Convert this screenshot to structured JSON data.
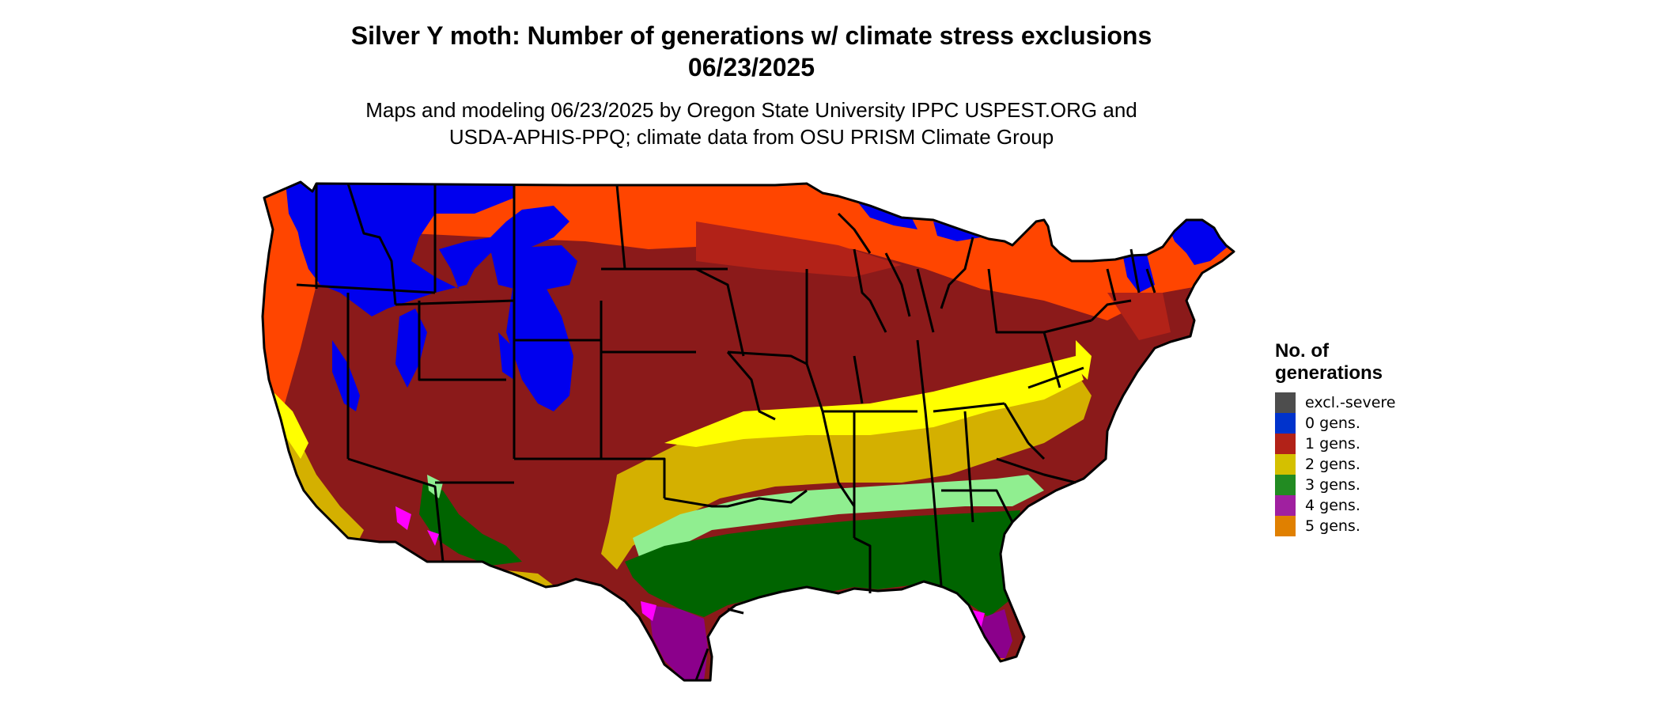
{
  "title": {
    "line1": "Silver Y moth: Number of generations w/ climate stress exclusions",
    "line2": "06/23/2025"
  },
  "subtitle": {
    "line1": "Maps and modeling 06/23/2025 by Oregon State University IPPC USPEST.ORG and",
    "line2": "USDA-APHIS-PPQ; climate data from OSU PRISM Climate Group"
  },
  "legend": {
    "title_line1": "No. of",
    "title_line2": "generations",
    "items": [
      {
        "label": "excl.-severe",
        "color": "#4d4d4d"
      },
      {
        "label": "0 gens.",
        "color": "#0033cc"
      },
      {
        "label": "1 gens.",
        "color": "#b22218"
      },
      {
        "label": "2 gens.",
        "color": "#d4c000"
      },
      {
        "label": "3 gens.",
        "color": "#228b22"
      },
      {
        "label": "4 gens.",
        "color": "#a020a0"
      },
      {
        "label": "5 gens.",
        "color": "#e08000"
      }
    ]
  },
  "map_colors": {
    "zero_gens": "#0000ee",
    "one_gens_light": "#ff4500",
    "one_gens_mid": "#b22218",
    "one_gens_dark": "#8b1a1a",
    "two_gens_light": "#ffff00",
    "two_gens_dark": "#d4b000",
    "three_gens_light": "#90ee90",
    "three_gens_dark": "#006400",
    "four_gens_light": "#ff00ff",
    "four_gens_dark": "#8b008b",
    "five_gens": "#e07000",
    "state_border": "#000000"
  }
}
